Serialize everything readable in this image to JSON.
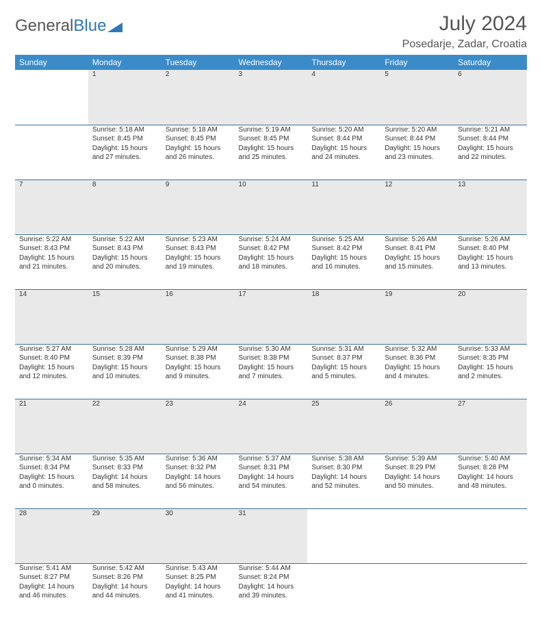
{
  "brand": {
    "part1": "General",
    "part2": "Blue"
  },
  "title": "July 2024",
  "location": "Posedarje, Zadar, Croatia",
  "colors": {
    "header_bg": "#3b8bc9",
    "header_fg": "#ffffff",
    "daynum_bg": "#e9e9e9",
    "rule": "#3b6f9c",
    "brand_blue": "#2f77bb",
    "text": "#333333"
  },
  "weekdays": [
    "Sunday",
    "Monday",
    "Tuesday",
    "Wednesday",
    "Thursday",
    "Friday",
    "Saturday"
  ],
  "weeks": [
    {
      "nums": [
        "",
        "1",
        "2",
        "3",
        "4",
        "5",
        "6"
      ],
      "cells": [
        null,
        {
          "sr": "5:18 AM",
          "ss": "8:45 PM",
          "dl": "15 hours and 27 minutes."
        },
        {
          "sr": "5:18 AM",
          "ss": "8:45 PM",
          "dl": "15 hours and 26 minutes."
        },
        {
          "sr": "5:19 AM",
          "ss": "8:45 PM",
          "dl": "15 hours and 25 minutes."
        },
        {
          "sr": "5:20 AM",
          "ss": "8:44 PM",
          "dl": "15 hours and 24 minutes."
        },
        {
          "sr": "5:20 AM",
          "ss": "8:44 PM",
          "dl": "15 hours and 23 minutes."
        },
        {
          "sr": "5:21 AM",
          "ss": "8:44 PM",
          "dl": "15 hours and 22 minutes."
        }
      ]
    },
    {
      "nums": [
        "7",
        "8",
        "9",
        "10",
        "11",
        "12",
        "13"
      ],
      "cells": [
        {
          "sr": "5:22 AM",
          "ss": "8:43 PM",
          "dl": "15 hours and 21 minutes."
        },
        {
          "sr": "5:22 AM",
          "ss": "8:43 PM",
          "dl": "15 hours and 20 minutes."
        },
        {
          "sr": "5:23 AM",
          "ss": "8:43 PM",
          "dl": "15 hours and 19 minutes."
        },
        {
          "sr": "5:24 AM",
          "ss": "8:42 PM",
          "dl": "15 hours and 18 minutes."
        },
        {
          "sr": "5:25 AM",
          "ss": "8:42 PM",
          "dl": "15 hours and 16 minutes."
        },
        {
          "sr": "5:26 AM",
          "ss": "8:41 PM",
          "dl": "15 hours and 15 minutes."
        },
        {
          "sr": "5:26 AM",
          "ss": "8:40 PM",
          "dl": "15 hours and 13 minutes."
        }
      ]
    },
    {
      "nums": [
        "14",
        "15",
        "16",
        "17",
        "18",
        "19",
        "20"
      ],
      "cells": [
        {
          "sr": "5:27 AM",
          "ss": "8:40 PM",
          "dl": "15 hours and 12 minutes."
        },
        {
          "sr": "5:28 AM",
          "ss": "8:39 PM",
          "dl": "15 hours and 10 minutes."
        },
        {
          "sr": "5:29 AM",
          "ss": "8:38 PM",
          "dl": "15 hours and 9 minutes."
        },
        {
          "sr": "5:30 AM",
          "ss": "8:38 PM",
          "dl": "15 hours and 7 minutes."
        },
        {
          "sr": "5:31 AM",
          "ss": "8:37 PM",
          "dl": "15 hours and 5 minutes."
        },
        {
          "sr": "5:32 AM",
          "ss": "8:36 PM",
          "dl": "15 hours and 4 minutes."
        },
        {
          "sr": "5:33 AM",
          "ss": "8:35 PM",
          "dl": "15 hours and 2 minutes."
        }
      ]
    },
    {
      "nums": [
        "21",
        "22",
        "23",
        "24",
        "25",
        "26",
        "27"
      ],
      "cells": [
        {
          "sr": "5:34 AM",
          "ss": "8:34 PM",
          "dl": "15 hours and 0 minutes."
        },
        {
          "sr": "5:35 AM",
          "ss": "8:33 PM",
          "dl": "14 hours and 58 minutes."
        },
        {
          "sr": "5:36 AM",
          "ss": "8:32 PM",
          "dl": "14 hours and 56 minutes."
        },
        {
          "sr": "5:37 AM",
          "ss": "8:31 PM",
          "dl": "14 hours and 54 minutes."
        },
        {
          "sr": "5:38 AM",
          "ss": "8:30 PM",
          "dl": "14 hours and 52 minutes."
        },
        {
          "sr": "5:39 AM",
          "ss": "8:29 PM",
          "dl": "14 hours and 50 minutes."
        },
        {
          "sr": "5:40 AM",
          "ss": "8:28 PM",
          "dl": "14 hours and 48 minutes."
        }
      ]
    },
    {
      "nums": [
        "28",
        "29",
        "30",
        "31",
        "",
        "",
        ""
      ],
      "cells": [
        {
          "sr": "5:41 AM",
          "ss": "8:27 PM",
          "dl": "14 hours and 46 minutes."
        },
        {
          "sr": "5:42 AM",
          "ss": "8:26 PM",
          "dl": "14 hours and 44 minutes."
        },
        {
          "sr": "5:43 AM",
          "ss": "8:25 PM",
          "dl": "14 hours and 41 minutes."
        },
        {
          "sr": "5:44 AM",
          "ss": "8:24 PM",
          "dl": "14 hours and 39 minutes."
        },
        null,
        null,
        null
      ],
      "last": true
    }
  ],
  "labels": {
    "sunrise": "Sunrise:",
    "sunset": "Sunset:",
    "daylight": "Daylight:"
  }
}
